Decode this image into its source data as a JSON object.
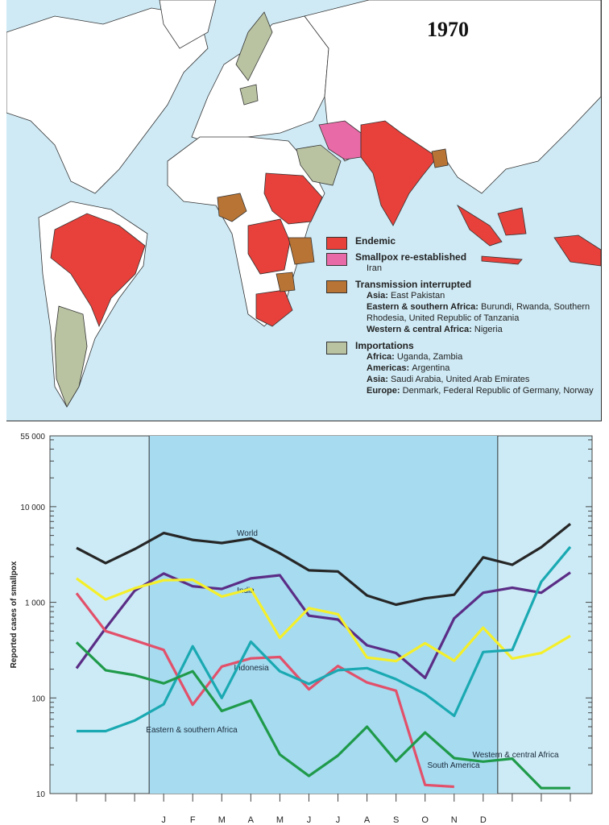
{
  "map": {
    "title": "1970",
    "colors": {
      "endemic": "#e8403a",
      "reestablished": "#e86aa6",
      "interrupted": "#b87434",
      "importations": "#b9c3a2",
      "ocean": "#cfeaf5",
      "land": "#ffffff"
    },
    "legend": [
      {
        "title": "Endemic",
        "lines": []
      },
      {
        "title": "Smallpox re-established",
        "lines": [
          {
            "region": "",
            "countries": "Iran"
          }
        ]
      },
      {
        "title": "Transmission interrupted",
        "lines": [
          {
            "region": "Asia:",
            "countries": "East Pakistan"
          },
          {
            "region": "Eastern & southern Africa:",
            "countries": "Burundi, Rwanda, Southern Rhodesia, United Republic of Tanzania"
          },
          {
            "region": "Western & central Africa:",
            "countries": "Nigeria"
          }
        ]
      },
      {
        "title": "Importations",
        "lines": [
          {
            "region": "Africa:",
            "countries": "Uganda, Zambia"
          },
          {
            "region": "Americas:",
            "countries": "Argentina"
          },
          {
            "region": "Asia:",
            "countries": "Saudi Arabia, United Arab Emirates"
          },
          {
            "region": "Europe:",
            "countries": "Denmark, Federal Republic of Germany, Norway"
          }
        ]
      }
    ]
  },
  "chart_data": {
    "type": "line",
    "ylabel": "Reported cases of smallpox",
    "yscale": "log",
    "ylim": [
      10,
      55000
    ],
    "yticks": [
      "55 000",
      "10 000",
      "1 000",
      "100",
      "10"
    ],
    "ytick_values": [
      55000,
      10000,
      1000,
      100,
      10
    ],
    "x": [
      0,
      1,
      2,
      3,
      4,
      5,
      6,
      7,
      8,
      9,
      10,
      11,
      12,
      13,
      14,
      15,
      16,
      17
    ],
    "month_labels": [
      {
        "index": 3,
        "label": "J"
      },
      {
        "index": 4,
        "label": "F"
      },
      {
        "index": 5,
        "label": "M"
      },
      {
        "index": 6,
        "label": "A"
      },
      {
        "index": 7,
        "label": "M"
      },
      {
        "index": 8,
        "label": "J"
      },
      {
        "index": 9,
        "label": "J"
      },
      {
        "index": 10,
        "label": "A"
      },
      {
        "index": 11,
        "label": "S"
      },
      {
        "index": 12,
        "label": "O"
      },
      {
        "index": 13,
        "label": "N"
      },
      {
        "index": 14,
        "label": "D"
      }
    ],
    "highlight_range": [
      2.5,
      14.5
    ],
    "series": [
      {
        "name": "World",
        "color": "#262626",
        "values": [
          3700,
          2570,
          3600,
          5300,
          4500,
          4170,
          4650,
          3260,
          2160,
          2100,
          1180,
          945,
          1100,
          1200,
          2950,
          2470,
          3760,
          6600
        ]
      },
      {
        "name": "India",
        "color": "#5b2d86",
        "values": [
          204,
          535,
          1320,
          2000,
          1470,
          1380,
          1780,
          1920,
          725,
          660,
          355,
          295,
          162,
          680,
          1260,
          1420,
          1260,
          2050
        ]
      },
      {
        "name": "Indonesia",
        "color": "#f4ef2a",
        "values": [
          1780,
          1070,
          1400,
          1700,
          1720,
          1150,
          1380,
          425,
          870,
          750,
          265,
          243,
          373,
          245,
          543,
          258,
          295,
          445
        ]
      },
      {
        "name": "South America",
        "color": "#e2506a",
        "values": [
          1245,
          500,
          400,
          318,
          85,
          213,
          259,
          268,
          123,
          216,
          145,
          119,
          12.3,
          11.8,
          null,
          null,
          null,
          null
        ]
      },
      {
        "name": "Eastern & southern Africa",
        "color": "#1aa9b2",
        "values": [
          45,
          45,
          58,
          86,
          347,
          100,
          387,
          190,
          140,
          195,
          205,
          157,
          110,
          65,
          302,
          318,
          1640,
          3800
        ]
      },
      {
        "name": "Western & central Africa",
        "color": "#1f9a4a",
        "values": [
          381,
          195,
          173,
          142,
          190,
          73,
          94,
          25.6,
          15.3,
          25,
          50,
          21.8,
          43.5,
          23.5,
          21.6,
          23.2,
          11.4,
          11.4
        ]
      }
    ]
  }
}
